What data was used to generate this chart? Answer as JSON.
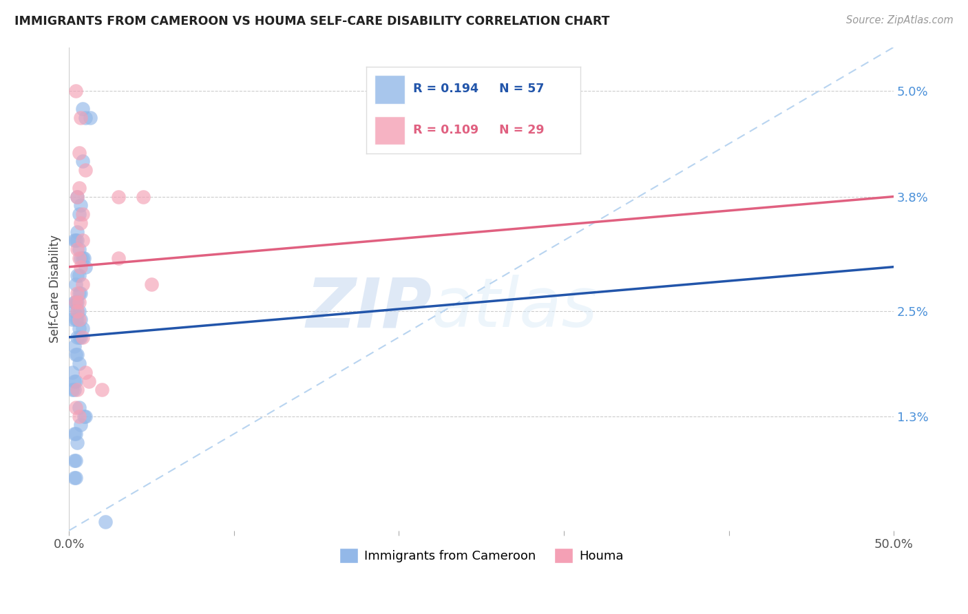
{
  "title": "IMMIGRANTS FROM CAMEROON VS HOUMA SELF-CARE DISABILITY CORRELATION CHART",
  "source": "Source: ZipAtlas.com",
  "ylabel": "Self-Care Disability",
  "ytick_labels": [
    "1.3%",
    "2.5%",
    "3.8%",
    "5.0%"
  ],
  "ytick_values": [
    0.013,
    0.025,
    0.038,
    0.05
  ],
  "xlim": [
    0.0,
    0.5
  ],
  "ylim": [
    0.0,
    0.055
  ],
  "legend_label_blue": "Immigrants from Cameroon",
  "legend_label_pink": "Houma",
  "blue_color": "#93b8e8",
  "pink_color": "#f4a0b5",
  "trendline_blue_color": "#2255aa",
  "trendline_pink_color": "#e06080",
  "diagonal_color": "#b8d4f0",
  "watermark_zip": "ZIP",
  "watermark_atlas": "atlas",
  "blue_r": "R = 0.194",
  "blue_n": "N = 57",
  "pink_r": "R = 0.109",
  "pink_n": "N = 29",
  "blue_trend_x0": 0.0,
  "blue_trend_y0": 0.022,
  "blue_trend_x1": 0.5,
  "blue_trend_y1": 0.03,
  "pink_trend_x0": 0.0,
  "pink_trend_y0": 0.03,
  "pink_trend_x1": 0.5,
  "pink_trend_y1": 0.038,
  "blue_scatter_x": [
    0.008,
    0.01,
    0.013,
    0.008,
    0.005,
    0.007,
    0.006,
    0.005,
    0.004,
    0.003,
    0.005,
    0.006,
    0.007,
    0.008,
    0.009,
    0.01,
    0.006,
    0.005,
    0.004,
    0.006,
    0.007,
    0.005,
    0.003,
    0.004,
    0.005,
    0.006,
    0.003,
    0.002,
    0.004,
    0.005,
    0.007,
    0.006,
    0.008,
    0.005,
    0.006,
    0.007,
    0.003,
    0.004,
    0.005,
    0.006,
    0.002,
    0.003,
    0.004,
    0.002,
    0.003,
    0.006,
    0.01,
    0.009,
    0.007,
    0.004,
    0.003,
    0.005,
    0.004,
    0.003,
    0.004,
    0.003,
    0.022
  ],
  "blue_scatter_y": [
    0.048,
    0.047,
    0.047,
    0.042,
    0.038,
    0.037,
    0.036,
    0.034,
    0.033,
    0.033,
    0.033,
    0.032,
    0.031,
    0.031,
    0.031,
    0.03,
    0.029,
    0.029,
    0.028,
    0.027,
    0.027,
    0.026,
    0.026,
    0.026,
    0.025,
    0.025,
    0.025,
    0.024,
    0.024,
    0.024,
    0.024,
    0.023,
    0.023,
    0.022,
    0.022,
    0.022,
    0.021,
    0.02,
    0.02,
    0.019,
    0.018,
    0.017,
    0.017,
    0.016,
    0.016,
    0.014,
    0.013,
    0.013,
    0.012,
    0.011,
    0.011,
    0.01,
    0.008,
    0.008,
    0.006,
    0.006,
    0.001
  ],
  "pink_scatter_x": [
    0.004,
    0.007,
    0.006,
    0.01,
    0.006,
    0.005,
    0.008,
    0.007,
    0.008,
    0.005,
    0.006,
    0.007,
    0.008,
    0.005,
    0.006,
    0.004,
    0.005,
    0.006,
    0.008,
    0.01,
    0.012,
    0.005,
    0.004,
    0.006,
    0.03,
    0.045,
    0.05,
    0.03,
    0.02
  ],
  "pink_scatter_y": [
    0.05,
    0.047,
    0.043,
    0.041,
    0.039,
    0.038,
    0.036,
    0.035,
    0.033,
    0.032,
    0.031,
    0.03,
    0.028,
    0.027,
    0.026,
    0.026,
    0.025,
    0.024,
    0.022,
    0.018,
    0.017,
    0.016,
    0.014,
    0.013,
    0.038,
    0.038,
    0.028,
    0.031,
    0.016
  ]
}
